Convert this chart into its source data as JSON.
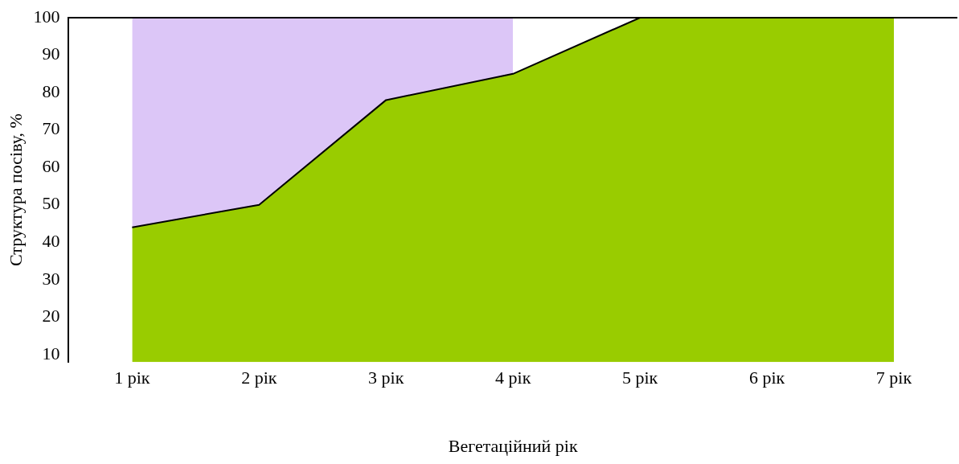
{
  "chart_data": {
    "type": "area",
    "xlabel": "Вегетаційний рік",
    "ylabel": "Структура посіву, %",
    "categories": [
      "1 рік",
      "2 рік",
      "3 рік",
      "4 рік",
      "5 рік",
      "6 рік",
      "7 рік"
    ],
    "stacked": true,
    "series": [
      {
        "color": "#99cc00",
        "values": [
          44,
          50,
          78,
          85,
          100,
          100,
          100
        ]
      },
      {
        "color": "#dcc6f7",
        "values": [
          56,
          50,
          22,
          15,
          null,
          null,
          null
        ]
      }
    ],
    "ylim": [
      8,
      100
    ],
    "yticks": [
      10,
      20,
      30,
      40,
      50,
      60,
      70,
      80,
      90,
      100
    ],
    "legend": false
  }
}
